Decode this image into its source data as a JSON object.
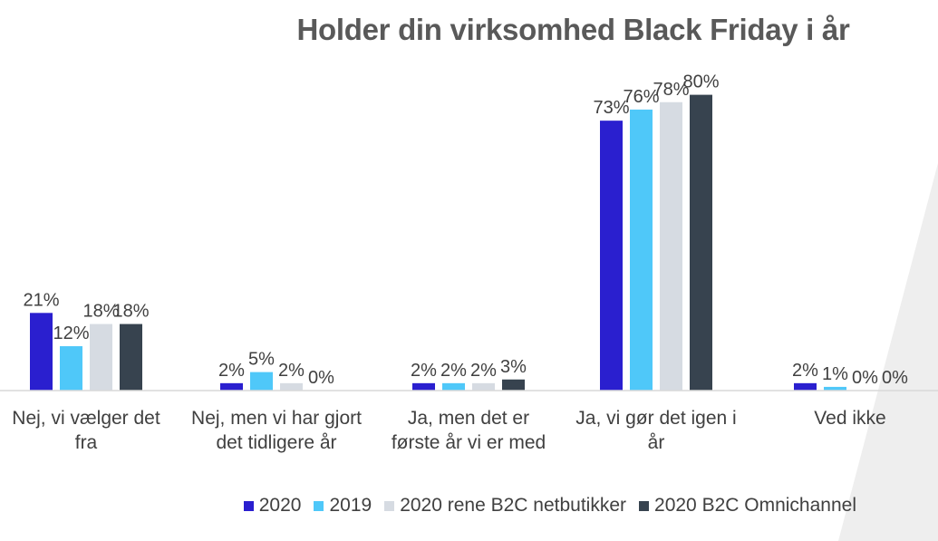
{
  "title": "Holder din virksomhed Black Friday i år",
  "colors": {
    "background_shape": "#eeeeee",
    "axis": "#d9d9d9",
    "text": "#404040",
    "title": "#595959"
  },
  "chart_data": {
    "type": "bar",
    "title": "Holder din virksomhed Black Friday i år",
    "categories": [
      [
        "Nej, vi vælger det",
        "fra"
      ],
      [
        "Nej, men vi har gjort",
        "det tidligere år"
      ],
      [
        "Ja, men det er",
        "første år vi er med"
      ],
      [
        "Ja, vi gør det igen i",
        "år"
      ],
      [
        "Ved ikke"
      ]
    ],
    "series": [
      {
        "name": "2020",
        "color": "#2a1fcf",
        "values": [
          21,
          2,
          2,
          73,
          2
        ]
      },
      {
        "name": "2019",
        "color": "#4fc8f9",
        "values": [
          12,
          5,
          2,
          76,
          1
        ]
      },
      {
        "name": "2020 rene B2C netbutikker",
        "color": "#d6dbe2",
        "values": [
          18,
          2,
          2,
          78,
          0
        ]
      },
      {
        "name": "2020 B2C Omnichannel",
        "color": "#37434f",
        "values": [
          18,
          0,
          3,
          80,
          0
        ]
      }
    ],
    "value_labels": [
      [
        "21%",
        "2%",
        "2%",
        "73%",
        "2%"
      ],
      [
        "12%",
        "5%",
        "2%",
        "76%",
        "1%"
      ],
      [
        "18%",
        "2%",
        "2%",
        "78%",
        "0%"
      ],
      [
        "18%",
        "0%",
        "3%",
        "80%",
        "0%"
      ]
    ],
    "ylim": [
      0,
      85
    ],
    "grid": false,
    "legend_position": "bottom"
  }
}
